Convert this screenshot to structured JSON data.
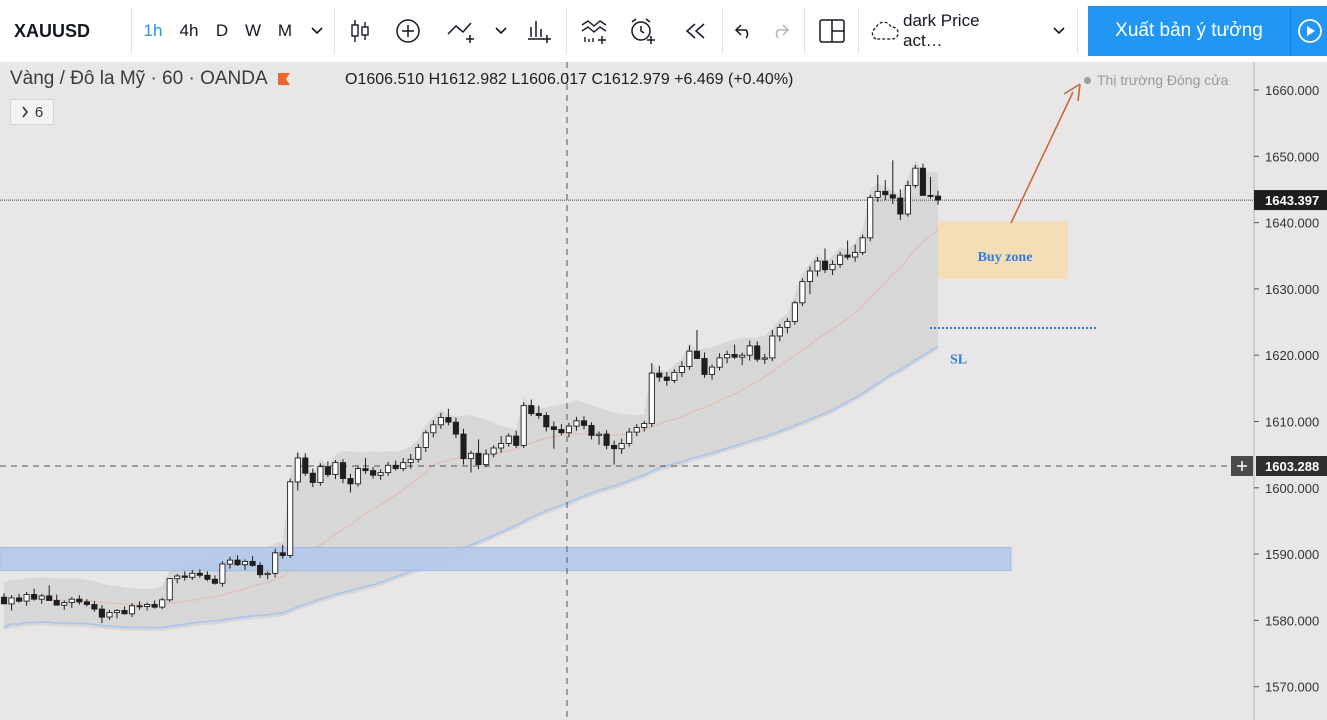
{
  "toolbar": {
    "symbol": "XAUUSD",
    "timeframes": [
      "1h",
      "4h",
      "D",
      "W",
      "M"
    ],
    "active_timeframe": "1h",
    "template_label": "dark Price act…",
    "publish_label": "Xuất bản ý tưởng"
  },
  "legend": {
    "title": "Vàng / Đô la Mỹ · 60 · OANDA",
    "ohlc": "O1606.510  H1612.982  L1606.017  C1612.979  +6.469 (+0.40%)",
    "collapsed_count": "6",
    "market_status": "Thị trường Đóng cửa"
  },
  "colors": {
    "up": "#ffffff",
    "down": "#1e1e1e",
    "band": "#d4d3d3",
    "blue_ma": "#a9c4ef",
    "red_ma": "#e5bcb6",
    "zone_blue": "#b5c9ec",
    "zone_buy": "#f5ddb4",
    "accent": "#2196f3",
    "arrow": "#c7693a"
  },
  "chart_data": {
    "type": "candlestick",
    "price_axis": {
      "ticks": [
        "1660.000",
        "1650.000",
        "1640.000",
        "1630.000",
        "1620.000",
        "1610.000",
        "1600.000",
        "1590.000",
        "1580.000",
        "1570.000"
      ],
      "ylim": [
        1565,
        1666
      ]
    },
    "price_labels": {
      "last": "1643.397",
      "crosshair": "1603.288"
    },
    "candles": [
      [
        1583.5,
        1584.1,
        1582.8,
        1582.5
      ],
      [
        1582.5,
        1583.8,
        1581.5,
        1583.4
      ],
      [
        1583.4,
        1584,
        1582.7,
        1582.9
      ],
      [
        1582.9,
        1584.3,
        1582.2,
        1583.9
      ],
      [
        1583.9,
        1584.8,
        1583,
        1583.2
      ],
      [
        1583.2,
        1584,
        1582.5,
        1583.7
      ],
      [
        1583.7,
        1585.3,
        1583.2,
        1583
      ],
      [
        1583,
        1583.9,
        1582.3,
        1582.3
      ],
      [
        1582.3,
        1583,
        1581.6,
        1582.7
      ],
      [
        1582.7,
        1583.5,
        1581.9,
        1583.2
      ],
      [
        1583.2,
        1583.8,
        1582.4,
        1582.8
      ],
      [
        1582.8,
        1583.2,
        1582.1,
        1582.4
      ],
      [
        1582.4,
        1582.9,
        1581.3,
        1581.7
      ],
      [
        1581.7,
        1582.3,
        1579.6,
        1580.5
      ],
      [
        1580.5,
        1581.6,
        1580.1,
        1581.2
      ],
      [
        1581.2,
        1581.7,
        1580.3,
        1581.5
      ],
      [
        1581.5,
        1582.1,
        1580.9,
        1581
      ],
      [
        1581,
        1582.6,
        1580.5,
        1582.2
      ],
      [
        1582.2,
        1582.9,
        1581.6,
        1582.1
      ],
      [
        1582.1,
        1582.7,
        1581.5,
        1582.4
      ],
      [
        1582.4,
        1583,
        1581.8,
        1582
      ],
      [
        1582,
        1583.4,
        1581.7,
        1583.1
      ],
      [
        1583.1,
        1586.1,
        1582.8,
        1586.3
      ],
      [
        1586.3,
        1587,
        1585.6,
        1586.7
      ],
      [
        1586.7,
        1587.4,
        1586,
        1586.5
      ],
      [
        1586.5,
        1587.6,
        1586.1,
        1587.1
      ],
      [
        1587.1,
        1587.7,
        1586.4,
        1586.8
      ],
      [
        1586.8,
        1587.4,
        1585.9,
        1586.2
      ],
      [
        1586.2,
        1586.8,
        1585.4,
        1585.6
      ],
      [
        1585.6,
        1588.9,
        1585.1,
        1588.5
      ],
      [
        1588.5,
        1589.6,
        1587.8,
        1589.1
      ],
      [
        1589.1,
        1589.8,
        1588.2,
        1588.4
      ],
      [
        1588.4,
        1589.2,
        1587.6,
        1588.9
      ],
      [
        1588.9,
        1589.7,
        1588.1,
        1588.3
      ],
      [
        1588.3,
        1588.8,
        1586.4,
        1586.9
      ],
      [
        1586.9,
        1587.4,
        1586.2,
        1587.1
      ],
      [
        1587.1,
        1590.8,
        1586.5,
        1590.2
      ],
      [
        1590.2,
        1591.4,
        1589.3,
        1589.8
      ],
      [
        1589.8,
        1601.4,
        1589.4,
        1600.9
      ],
      [
        1600.9,
        1605.3,
        1599.6,
        1604.5
      ],
      [
        1604.5,
        1605.2,
        1601.8,
        1602.2
      ],
      [
        1602.2,
        1602.9,
        1600.1,
        1600.8
      ],
      [
        1600.8,
        1603.7,
        1600.3,
        1603.2
      ],
      [
        1603.2,
        1604,
        1601.6,
        1602
      ],
      [
        1602,
        1604.2,
        1601.3,
        1603.8
      ],
      [
        1603.8,
        1604.3,
        1600.7,
        1601.4
      ],
      [
        1601.4,
        1602.1,
        1599.3,
        1600.6
      ],
      [
        1600.6,
        1603.4,
        1600.2,
        1602.9
      ],
      [
        1602.9,
        1604.5,
        1602.1,
        1602.6
      ],
      [
        1602.6,
        1603.1,
        1601.4,
        1601.9
      ],
      [
        1601.9,
        1602.8,
        1601.2,
        1602.3
      ],
      [
        1602.3,
        1603.9,
        1601.8,
        1603.4
      ],
      [
        1603.4,
        1604.1,
        1602.6,
        1602.9
      ],
      [
        1602.9,
        1604.5,
        1602.5,
        1603.8
      ],
      [
        1603.8,
        1605.1,
        1602.9,
        1604.3
      ],
      [
        1604.3,
        1606.6,
        1603.8,
        1606.1
      ],
      [
        1606.1,
        1608.7,
        1605.4,
        1608.3
      ],
      [
        1608.3,
        1610.2,
        1607.6,
        1609.5
      ],
      [
        1609.5,
        1611.3,
        1608.9,
        1610.6
      ],
      [
        1610.6,
        1611.9,
        1609.4,
        1609.9
      ],
      [
        1609.9,
        1610.6,
        1607.5,
        1608.1
      ],
      [
        1608.1,
        1608.9,
        1603.5,
        1604.4
      ],
      [
        1604.4,
        1605.6,
        1602.3,
        1605.2
      ],
      [
        1605.2,
        1607.3,
        1602.8,
        1603.5
      ],
      [
        1603.5,
        1605.8,
        1603.1,
        1605.1
      ],
      [
        1605.1,
        1606.4,
        1604.6,
        1606
      ],
      [
        1606,
        1607.8,
        1605.3,
        1606.7
      ],
      [
        1606.7,
        1608.2,
        1606.2,
        1607.8
      ],
      [
        1607.8,
        1608.6,
        1606,
        1606.4
      ],
      [
        1606.4,
        1612.9,
        1606,
        1612.4
      ],
      [
        1612.4,
        1613.3,
        1610.8,
        1611.2
      ],
      [
        1611.2,
        1612.4,
        1610.4,
        1610.9
      ],
      [
        1610.9,
        1611.4,
        1608.5,
        1609.2
      ],
      [
        1609.2,
        1610,
        1605.9,
        1608.8
      ],
      [
        1608.8,
        1609.6,
        1607.9,
        1608.3
      ],
      [
        1608.3,
        1609.8,
        1607.6,
        1609.3
      ],
      [
        1609.3,
        1610.7,
        1608.6,
        1610.1
      ],
      [
        1610.1,
        1610.8,
        1608.8,
        1609.4
      ],
      [
        1609.4,
        1609.9,
        1607.3,
        1607.9
      ],
      [
        1607.9,
        1608.5,
        1606.5,
        1608.1
      ],
      [
        1608.1,
        1608.7,
        1605.8,
        1606.4
      ],
      [
        1606.4,
        1607.1,
        1603.5,
        1605.9
      ],
      [
        1605.9,
        1607.4,
        1605.1,
        1606.7
      ],
      [
        1606.7,
        1609,
        1606.2,
        1608.4
      ],
      [
        1608.4,
        1609.6,
        1607.8,
        1609.1
      ],
      [
        1609.1,
        1610.1,
        1608.5,
        1609.7
      ],
      [
        1609.7,
        1618.8,
        1609.2,
        1617.3
      ],
      [
        1617.3,
        1618.4,
        1616,
        1616.7
      ],
      [
        1616.7,
        1617.5,
        1615.4,
        1616.2
      ],
      [
        1616.2,
        1617.9,
        1615.8,
        1617.4
      ],
      [
        1617.4,
        1619.1,
        1616.7,
        1618.3
      ],
      [
        1618.3,
        1621.5,
        1617.8,
        1620.6
      ],
      [
        1620.6,
        1623.8,
        1619.8,
        1619.5
      ],
      [
        1619.5,
        1620.4,
        1616.6,
        1617.1
      ],
      [
        1617.1,
        1618.6,
        1616.3,
        1618.2
      ],
      [
        1618.2,
        1620.3,
        1617.7,
        1619.6
      ],
      [
        1619.6,
        1620.7,
        1618.8,
        1620.1
      ],
      [
        1620.1,
        1621.6,
        1619.4,
        1619.7
      ],
      [
        1619.7,
        1620.4,
        1618.5,
        1620
      ],
      [
        1620,
        1622.2,
        1619.2,
        1621.4
      ],
      [
        1621.4,
        1622.1,
        1619,
        1619.4
      ],
      [
        1619.4,
        1620.2,
        1618.7,
        1619.6
      ],
      [
        1619.6,
        1623.8,
        1619.1,
        1622.9
      ],
      [
        1622.9,
        1624.7,
        1622.1,
        1624.2
      ],
      [
        1624.2,
        1625.6,
        1623.3,
        1625.1
      ],
      [
        1625.1,
        1628.2,
        1624.6,
        1627.9
      ],
      [
        1627.9,
        1631.6,
        1627.4,
        1631.1
      ],
      [
        1631.1,
        1633.4,
        1629.2,
        1632.7
      ],
      [
        1632.7,
        1634.8,
        1631.9,
        1634.2
      ],
      [
        1634.2,
        1636.1,
        1632.4,
        1632.9
      ],
      [
        1632.9,
        1634.3,
        1632.1,
        1633.7
      ],
      [
        1633.7,
        1635.6,
        1633.2,
        1635.1
      ],
      [
        1635.1,
        1637.3,
        1634.4,
        1634.8
      ],
      [
        1634.8,
        1636.7,
        1634.1,
        1635.5
      ],
      [
        1635.5,
        1638.2,
        1635.1,
        1637.7
      ],
      [
        1637.7,
        1644.2,
        1637.2,
        1643.8
      ],
      [
        1643.8,
        1647.2,
        1643.1,
        1644.7
      ],
      [
        1644.7,
        1646.4,
        1643.4,
        1644.2
      ],
      [
        1644.2,
        1649.4,
        1642.8,
        1643.7
      ],
      [
        1643.7,
        1645,
        1640.4,
        1641.3
      ],
      [
        1641.3,
        1646.3,
        1640.9,
        1645.6
      ],
      [
        1645.6,
        1648.7,
        1645.2,
        1648.2
      ],
      [
        1648.2,
        1648.9,
        1644.5,
        1644.1
      ],
      [
        1644.1,
        1646.9,
        1643.6,
        1644
      ],
      [
        1644,
        1644.8,
        1642.7,
        1643.4
      ]
    ],
    "annotations": [
      "Buy zone",
      "SL"
    ]
  }
}
